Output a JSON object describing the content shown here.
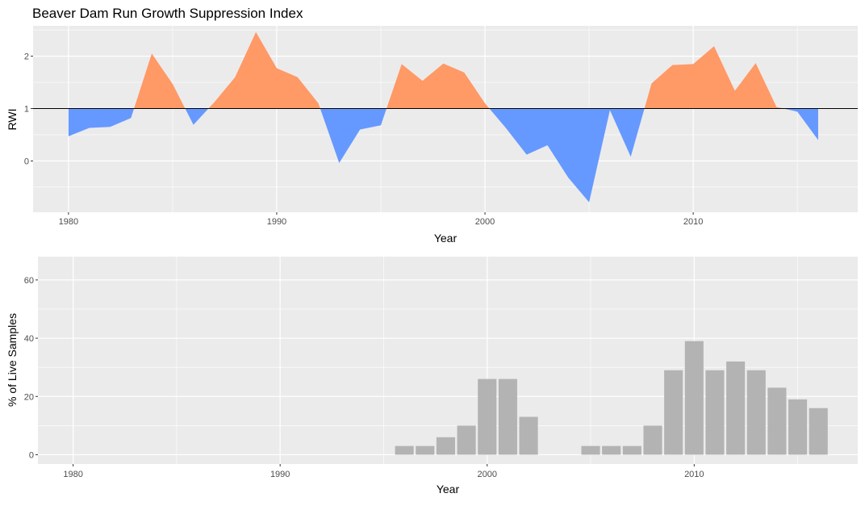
{
  "chart_data": [
    {
      "type": "area",
      "title": "Beaver Dam Run Growth Suppression Index",
      "xlabel": "Year",
      "ylabel": "RWI",
      "baseline": 1,
      "xlim": [
        1978.3,
        2017.9
      ],
      "ylim": [
        -0.98,
        2.58
      ],
      "x_ticks": [
        1980,
        1990,
        2000,
        2010
      ],
      "y_ticks": [
        0,
        1,
        2
      ],
      "grid": true,
      "colors": {
        "above": "#FF9966",
        "below": "#6699FF",
        "baseline": "#000000",
        "panel": "#EBEBEB",
        "grid": "#FFFFFF"
      },
      "series": [
        {
          "x": [
            1980,
            1981,
            1982,
            1983,
            1984,
            1985,
            1986,
            1987,
            1988,
            1989,
            1990,
            1991,
            1992,
            1993,
            1994,
            1995,
            1996,
            1997,
            1998,
            1999,
            2000,
            2001,
            2002,
            2003,
            2004,
            2005,
            2006,
            2007,
            2008,
            2009,
            2010,
            2011,
            2012,
            2013,
            2014,
            2015,
            2016
          ],
          "y": [
            0.47,
            0.63,
            0.65,
            0.82,
            2.05,
            1.47,
            0.69,
            1.12,
            1.6,
            2.46,
            1.77,
            1.6,
            1.1,
            -0.04,
            0.6,
            0.68,
            1.85,
            1.53,
            1.86,
            1.69,
            1.1,
            0.63,
            0.12,
            0.3,
            -0.32,
            -0.79,
            0.97,
            0.08,
            1.48,
            1.83,
            1.85,
            2.19,
            1.34,
            1.87,
            1.03,
            0.94,
            0.4
          ]
        }
      ]
    },
    {
      "type": "bar",
      "title": "",
      "xlabel": "Year",
      "ylabel": "% of Live Samples",
      "xlim": [
        1978.3,
        2017.9
      ],
      "ylim": [
        -3.2,
        68
      ],
      "x_ticks": [
        1980,
        1990,
        2000,
        2010
      ],
      "y_ticks": [
        0,
        20,
        40,
        60
      ],
      "grid": true,
      "colors": {
        "bar": "#B3B3B3",
        "panel": "#EBEBEB",
        "grid": "#FFFFFF"
      },
      "series": [
        {
          "x": [
            1996,
            1997,
            1998,
            1999,
            2000,
            2001,
            2002,
            2005,
            2006,
            2007,
            2008,
            2009,
            2010,
            2011,
            2012,
            2013,
            2014,
            2015,
            2016
          ],
          "y": [
            3,
            3,
            6,
            10,
            26,
            26,
            13,
            3,
            3,
            3,
            10,
            29,
            39,
            29,
            32,
            29,
            23,
            19,
            16
          ]
        }
      ]
    }
  ]
}
